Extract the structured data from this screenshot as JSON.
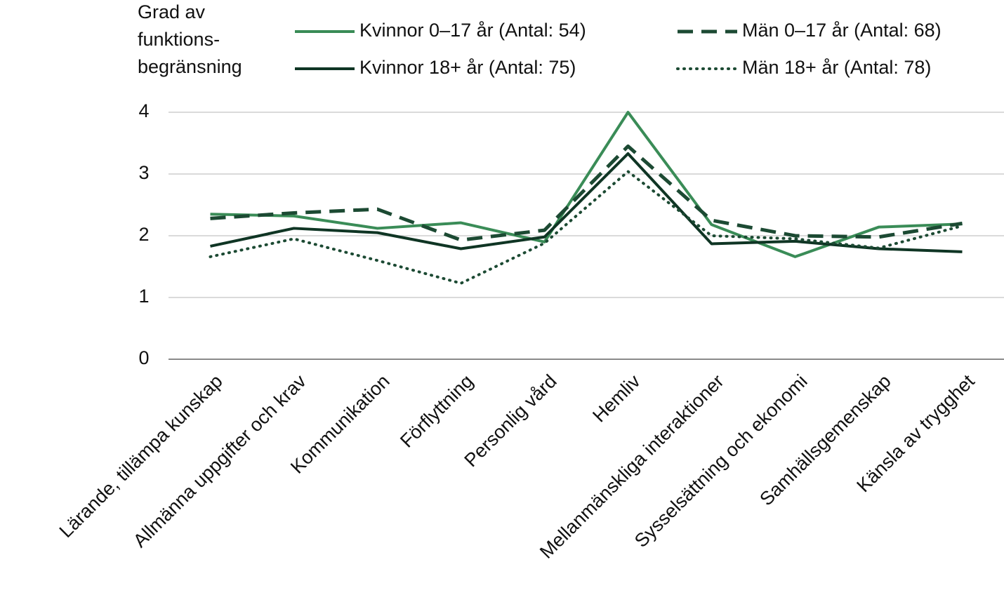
{
  "chart_data": {
    "type": "line",
    "y_label": [
      "Grad av",
      "funktions-",
      "begränsning"
    ],
    "categories": [
      "Lärande, tillämpa kunskap",
      "Allmänna uppgifter och krav",
      "Kommunikation",
      "Förflyttning",
      "Personlig vård",
      "Hemliv",
      "Mellanmänskliga interaktioner",
      "Sysselsättning och ekonomi",
      "Samhällsgemenskap",
      "Känsla av trygghet"
    ],
    "series": [
      {
        "name": "Kvinnor 0–17 år (Antal: 54)",
        "color": "#3a8c57",
        "linestyle": "solid",
        "values": [
          2.35,
          2.32,
          2.12,
          2.21,
          1.9,
          4.0,
          2.18,
          1.66,
          2.14,
          2.19
        ]
      },
      {
        "name": "Män 0–17 år (Antal: 68)",
        "color": "#1c4a33",
        "linestyle": "dashed",
        "values": [
          2.28,
          2.37,
          2.43,
          1.93,
          2.09,
          3.45,
          2.25,
          2.0,
          1.98,
          2.2
        ]
      },
      {
        "name": "Kvinnor 18+ år (Antal: 75)",
        "color": "#0f3524",
        "linestyle": "solid",
        "values": [
          1.83,
          2.12,
          2.05,
          1.79,
          1.98,
          3.33,
          1.87,
          1.91,
          1.79,
          1.74
        ]
      },
      {
        "name": "Män 18+ år (Antal: 78)",
        "color": "#1c4a33",
        "linestyle": "dotted",
        "values": [
          1.66,
          1.95,
          1.6,
          1.23,
          1.88,
          3.04,
          2.0,
          1.95,
          1.8,
          2.16
        ]
      }
    ],
    "ylim": [
      0,
      4
    ],
    "yticks": [
      0,
      1,
      2,
      3,
      4
    ],
    "grid": true
  }
}
